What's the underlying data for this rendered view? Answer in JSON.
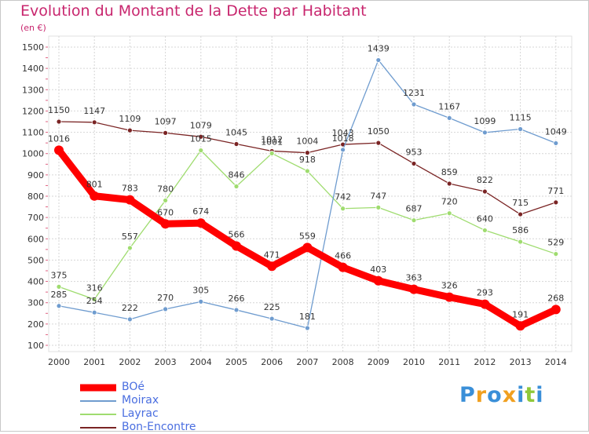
{
  "header": {
    "title": "Evolution du Montant de la Dette par Habitant",
    "unit": "(en €)"
  },
  "logo_text": "Proxiti",
  "chart_data": {
    "type": "line",
    "title": "Evolution du Montant de la Dette par Habitant",
    "ylabel": "(en €)",
    "xlabel": "",
    "ylim": [
      100,
      1500
    ],
    "yticks": [
      100,
      200,
      300,
      400,
      500,
      600,
      700,
      800,
      900,
      1000,
      1100,
      1200,
      1300,
      1400,
      1500
    ],
    "grid": true,
    "legend_position": "bottom-left",
    "x": [
      "2000",
      "2001",
      "2002",
      "2003",
      "2004",
      "2005",
      "2006",
      "2007",
      "2008",
      "2009",
      "2010",
      "2011",
      "2012",
      "2013",
      "2014"
    ],
    "series": [
      {
        "name": "BOé",
        "color": "#ff0000",
        "values": [
          1016,
          801,
          783,
          670,
          674,
          566,
          471,
          559,
          466,
          403,
          363,
          326,
          293,
          191,
          268
        ]
      },
      {
        "name": "Moirax",
        "color": "#6f9ccf",
        "values": [
          285,
          254,
          222,
          270,
          305,
          266,
          225,
          181,
          1018,
          1439,
          1231,
          1167,
          1099,
          1115,
          1049
        ]
      },
      {
        "name": "Layrac",
        "color": "#9fdc6f",
        "values": [
          375,
          316,
          557,
          780,
          1015,
          846,
          1001,
          918,
          742,
          747,
          687,
          720,
          640,
          586,
          529
        ]
      },
      {
        "name": "Bon-Encontre",
        "color": "#7a2424",
        "values": [
          1150,
          1147,
          1109,
          1097,
          1079,
          1045,
          1012,
          1004,
          1043,
          1050,
          953,
          859,
          822,
          715,
          771
        ]
      }
    ],
    "data_labels": [
      [
        "1016",
        "801",
        "783",
        "670",
        "674",
        "566",
        "471",
        "559",
        "466",
        "403",
        "363",
        "326",
        "293",
        "191",
        "268"
      ],
      [
        "285",
        "254",
        "222",
        "270",
        "305",
        "266",
        "225",
        "181",
        "1018",
        "1439",
        "1231",
        "1167",
        "1099",
        "1115",
        "1049"
      ],
      [
        "375",
        "316",
        "557",
        "780",
        "1015",
        "846",
        "1001",
        "918",
        "742",
        "747",
        "687",
        "720",
        "640",
        "586",
        "529"
      ],
      [
        "1150",
        "1147",
        "1109",
        "1097",
        "1079",
        "1045",
        "1012",
        "1004",
        "1043",
        "1050",
        "953",
        "859",
        "822",
        "715",
        "771"
      ]
    ]
  }
}
